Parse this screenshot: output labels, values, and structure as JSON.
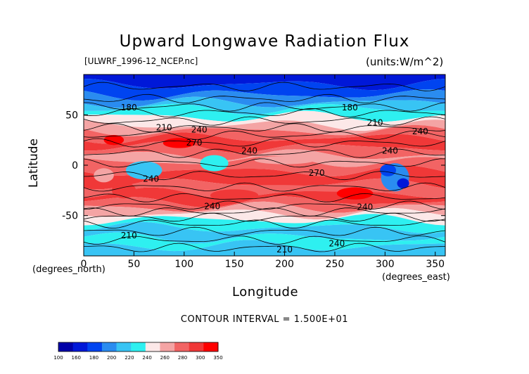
{
  "title": "Upward Longwave Radiation Flux",
  "subtitle_left": "[ULWRF_1996-12_NCEP.nc]",
  "subtitle_right": "(units:W/m^2)",
  "contour_interval": "CONTOUR INTERVAL = 1.500E+01",
  "chart_data": {
    "type": "heatmap",
    "title": "Upward Longwave Radiation Flux",
    "xlabel": "Longitude",
    "ylabel": "Latitude",
    "xunit_label": "(degrees_east)",
    "yunit_label": "(degrees_north)",
    "xlim": [
      0,
      360
    ],
    "ylim": [
      -90,
      90
    ],
    "xticks": [
      0,
      50,
      100,
      150,
      200,
      250,
      300,
      350
    ],
    "yticks": [
      -50,
      0,
      50
    ],
    "contour_labels": [
      {
        "text": "180",
        "x": 45,
        "y": 57
      },
      {
        "text": "180",
        "x": 265,
        "y": 57
      },
      {
        "text": "210",
        "x": 80,
        "y": 37
      },
      {
        "text": "210",
        "x": 290,
        "y": 42
      },
      {
        "text": "240",
        "x": 115,
        "y": 35
      },
      {
        "text": "240",
        "x": 335,
        "y": 33
      },
      {
        "text": "270",
        "x": 110,
        "y": 22
      },
      {
        "text": "240",
        "x": 165,
        "y": 14
      },
      {
        "text": "240",
        "x": 305,
        "y": 14
      },
      {
        "text": "270",
        "x": 232,
        "y": -8
      },
      {
        "text": "240",
        "x": 67,
        "y": -14
      },
      {
        "text": "240",
        "x": 128,
        "y": -41
      },
      {
        "text": "240",
        "x": 280,
        "y": -42
      },
      {
        "text": "210",
        "x": 45,
        "y": -70
      },
      {
        "text": "240",
        "x": 252,
        "y": -78
      },
      {
        "text": "210",
        "x": 200,
        "y": -84
      }
    ],
    "colorbar": {
      "labels": [
        "100",
        "160",
        "180",
        "200",
        "220",
        "240",
        "260",
        "280",
        "300",
        "350"
      ],
      "colors": [
        "#0000a8",
        "#0018d8",
        "#0044f0",
        "#2a8cf0",
        "#38c4f4",
        "#2ef0f0",
        "#fce8e8",
        "#f4a4a4",
        "#f26464",
        "#f03838",
        "#ff0000"
      ]
    }
  }
}
